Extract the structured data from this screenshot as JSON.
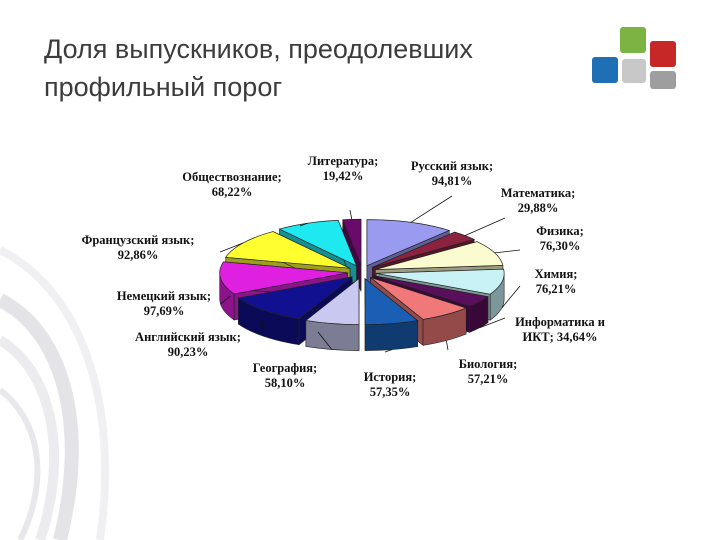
{
  "slide": {
    "title_line1": "Доля выпускников, преодолевших",
    "title_line2": "профильный порог"
  },
  "logo": {
    "icon": "company-logo-squares",
    "colors": [
      "#7cb342",
      "#1e6fb4",
      "#c62828",
      "#9e9e9e"
    ]
  },
  "chart_data": {
    "type": "pie",
    "style": "3d-exploded",
    "unit": "%",
    "slices": [
      {
        "name": "Русский язык",
        "value_label": "94,81%",
        "value": 94.81,
        "color": "#9a9af0",
        "label_lines": [
          "Русский язык;",
          "94,81%"
        ]
      },
      {
        "name": "Математика",
        "value_label": "29,88%",
        "value": 29.88,
        "color": "#8b2340",
        "label_lines": [
          "Математика;",
          "29,88%"
        ]
      },
      {
        "name": "Физика",
        "value_label": "76,30%",
        "value": 76.3,
        "color": "#fbfbd0",
        "label_lines": [
          "Физика;",
          "76,30%"
        ]
      },
      {
        "name": "Химия",
        "value_label": "76,21%",
        "value": 76.21,
        "color": "#c8f2f6",
        "label_lines": [
          "Химия;",
          "76,21%"
        ]
      },
      {
        "name": "Информатика и ИКТ",
        "value_label": "34,64%",
        "value": 34.64,
        "color": "#5a0f5a",
        "label_lines": [
          "Информатика и",
          "ИКТ; 34,64%"
        ]
      },
      {
        "name": "Биология",
        "value_label": "57,21%",
        "value": 57.21,
        "color": "#f07878",
        "label_lines": [
          "Биология;",
          "57,21%"
        ]
      },
      {
        "name": "История",
        "value_label": "57,35%",
        "value": 57.35,
        "color": "#1a5fb4",
        "label_lines": [
          "История;",
          "57,35%"
        ]
      },
      {
        "name": "География",
        "value_label": "58,10%",
        "value": 58.1,
        "color": "#c8c8f0",
        "label_lines": [
          "География;",
          "58,10%"
        ]
      },
      {
        "name": "Английский язык",
        "value_label": "90,23%",
        "value": 90.23,
        "color": "#101090",
        "label_lines": [
          "Английский язык;",
          "90,23%"
        ]
      },
      {
        "name": "Немецкий язык",
        "value_label": "97,69%",
        "value": 97.69,
        "color": "#e020e0",
        "label_lines": [
          "Немецкий язык;",
          "97,69%"
        ]
      },
      {
        "name": "Французский язык",
        "value_label": "92,86%",
        "value": 92.86,
        "color": "#ffff30",
        "label_lines": [
          "Французский язык;",
          "92,86%"
        ]
      },
      {
        "name": "Обществознание",
        "value_label": "68,22%",
        "value": 68.22,
        "color": "#1ee8f0",
        "label_lines": [
          "Обществознание;",
          "68,22%"
        ]
      },
      {
        "name": "Литература",
        "value_label": "19,42%",
        "value": 19.42,
        "color": "#6a0a6a",
        "label_lines": [
          "Литература;",
          "19,42%"
        ]
      }
    ]
  }
}
